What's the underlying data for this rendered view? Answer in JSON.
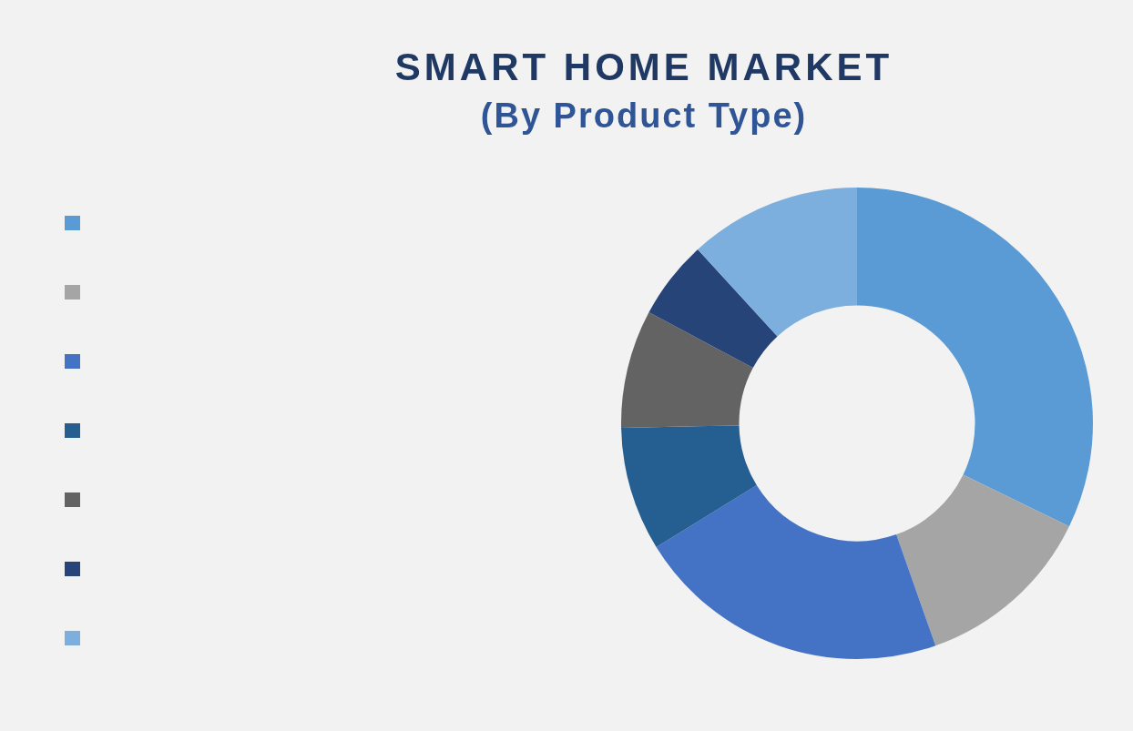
{
  "chart_data": {
    "type": "donut",
    "title": "SMART HOME MARKET",
    "subtitle": "(By Product Type)",
    "categories": [
      null,
      null,
      null,
      null,
      null,
      null,
      null
    ],
    "values": [
      32.2,
      12.4,
      21.6,
      8.5,
      8.1,
      5.4,
      11.8
    ],
    "colors": [
      "#5b9bd5",
      "#a5a5a5",
      "#4472c4",
      "#255e91",
      "#636363",
      "#264478",
      "#7cafdd"
    ]
  }
}
